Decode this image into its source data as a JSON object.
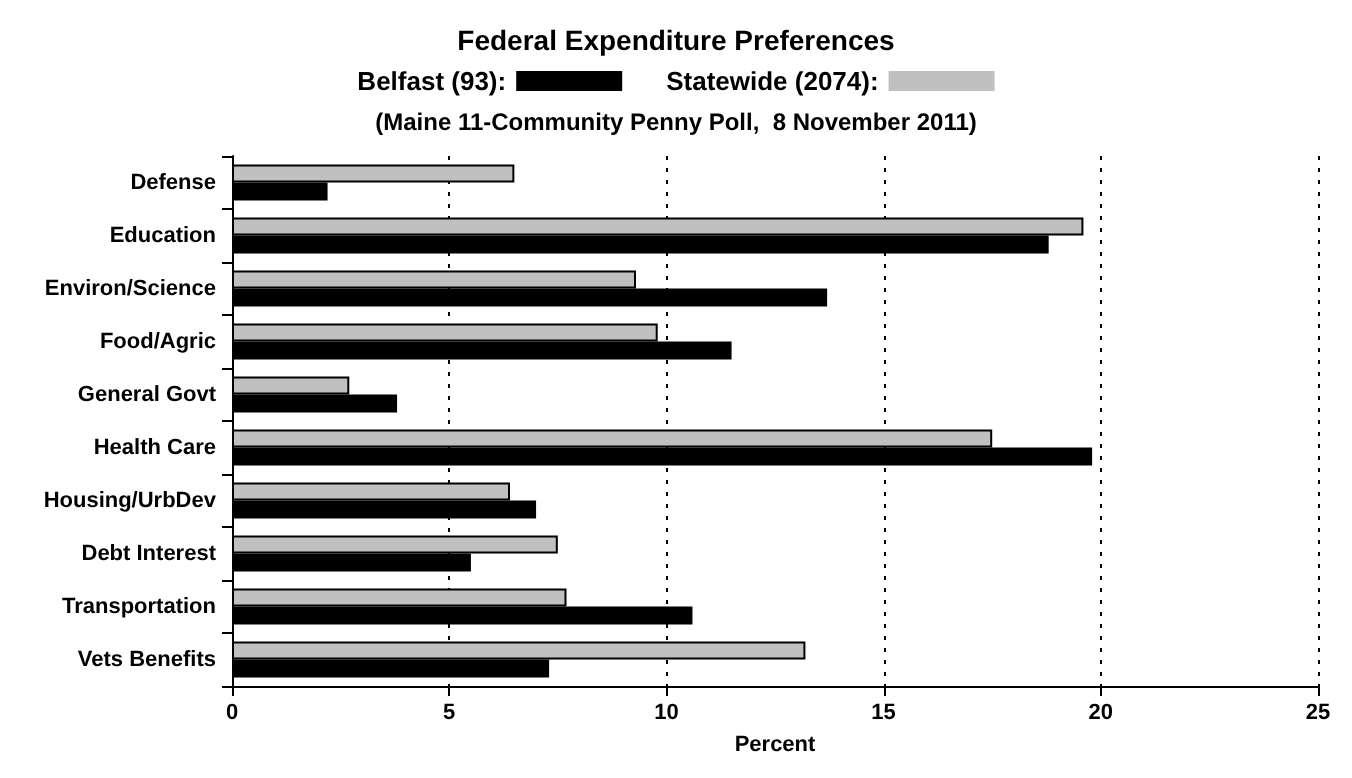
{
  "chart_data": {
    "type": "bar",
    "orientation": "horizontal",
    "title": "Federal Expenditure Preferences",
    "subtitle": "(Maine 11-Community Penny Poll,  8 November 2011)",
    "xlabel": "Percent",
    "categories": [
      "Defense",
      "Education",
      "Environ/Science",
      "Food/Agric",
      "General Govt",
      "Health Care",
      "Housing/UrbDev",
      "Debt Interest",
      "Transportation",
      "Vets Benefits"
    ],
    "series": [
      {
        "name": "Belfast (93):",
        "color": "#000000",
        "values": [
          2.2,
          18.8,
          13.7,
          11.5,
          3.8,
          19.8,
          7.0,
          5.5,
          10.6,
          7.3
        ]
      },
      {
        "name": "Statewide (2074):",
        "color": "#c0c0c0",
        "values": [
          6.5,
          19.6,
          9.3,
          9.8,
          2.7,
          17.5,
          6.4,
          7.5,
          7.7,
          13.2
        ]
      }
    ],
    "xlim": [
      0,
      25
    ],
    "xticks": [
      0,
      5,
      10,
      15,
      20,
      25
    ],
    "grid": "x",
    "legend": "top"
  }
}
